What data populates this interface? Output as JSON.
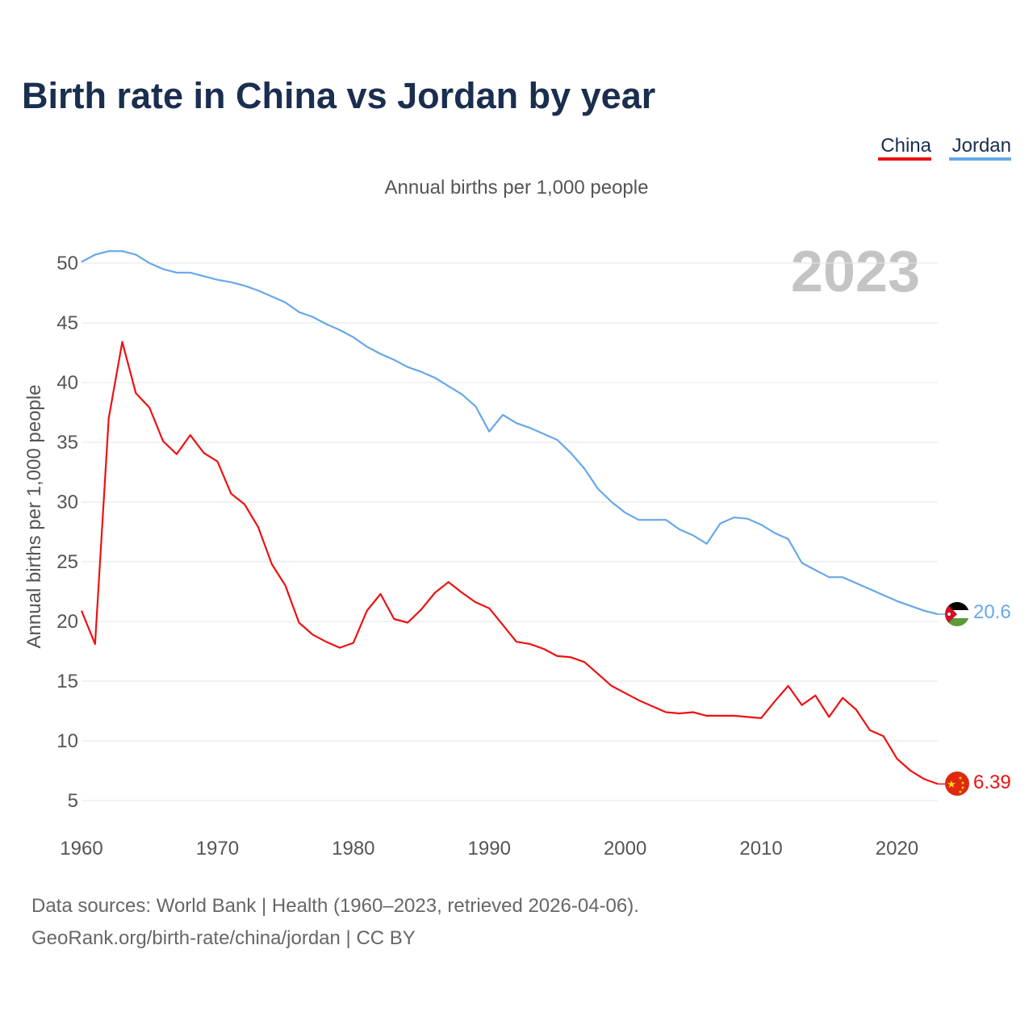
{
  "title": "Birth rate in China vs Jordan by year",
  "subtitle": "Annual births per 1,000 people",
  "year_watermark": "2023",
  "legend": [
    {
      "label": "China",
      "color": "#ee1111"
    },
    {
      "label": "Jordan",
      "color": "#66a8e8"
    }
  ],
  "footer": {
    "line1": "Data sources: World Bank | Health (1960–2023, retrieved 2026-04-06).",
    "line2": "GeoRank.org/birth-rate/china/jordan | CC BY"
  },
  "end_labels": {
    "china": "6.39",
    "jordan": "20.6"
  },
  "flags": {
    "china": "china-flag-icon",
    "jordan": "jordan-flag-icon"
  },
  "chart_data": {
    "type": "line",
    "title": "Birth rate in China vs Jordan by year",
    "xlabel": "",
    "ylabel": "Annual births per 1,000 people",
    "xlim": [
      1960,
      2023
    ],
    "ylim": [
      3.5,
      53
    ],
    "x_ticks": [
      1960,
      1970,
      1980,
      1990,
      2000,
      2010,
      2020
    ],
    "y_ticks": [
      5,
      10,
      15,
      20,
      25,
      30,
      35,
      40,
      45,
      50
    ],
    "x": [
      1960,
      1961,
      1962,
      1963,
      1964,
      1965,
      1966,
      1967,
      1968,
      1969,
      1970,
      1971,
      1972,
      1973,
      1974,
      1975,
      1976,
      1977,
      1978,
      1979,
      1980,
      1981,
      1982,
      1983,
      1984,
      1985,
      1986,
      1987,
      1988,
      1989,
      1990,
      1991,
      1992,
      1993,
      1994,
      1995,
      1996,
      1997,
      1998,
      1999,
      2000,
      2001,
      2002,
      2003,
      2004,
      2005,
      2006,
      2007,
      2008,
      2009,
      2010,
      2011,
      2012,
      2013,
      2014,
      2015,
      2016,
      2017,
      2018,
      2019,
      2020,
      2021,
      2022,
      2023
    ],
    "series": [
      {
        "name": "China",
        "color": "#ee1111",
        "values": [
          20.9,
          18.1,
          37.0,
          43.4,
          39.1,
          37.9,
          35.1,
          34.0,
          35.6,
          34.1,
          33.4,
          30.7,
          29.8,
          27.9,
          24.8,
          23.0,
          19.9,
          18.9,
          18.3,
          17.8,
          18.2,
          20.9,
          22.3,
          20.2,
          19.9,
          21.0,
          22.4,
          23.3,
          22.4,
          21.6,
          21.1,
          19.7,
          18.3,
          18.1,
          17.7,
          17.1,
          17.0,
          16.6,
          15.6,
          14.6,
          14.0,
          13.4,
          12.9,
          12.4,
          12.3,
          12.4,
          12.1,
          12.1,
          12.1,
          12.0,
          11.9,
          13.3,
          14.6,
          13.0,
          13.8,
          12.0,
          13.6,
          12.6,
          10.9,
          10.4,
          8.5,
          7.5,
          6.8,
          6.39
        ]
      },
      {
        "name": "Jordan",
        "color": "#66a8e8",
        "values": [
          50.1,
          50.7,
          51.0,
          51.0,
          50.7,
          50.0,
          49.5,
          49.2,
          49.2,
          48.9,
          48.6,
          48.4,
          48.1,
          47.7,
          47.2,
          46.7,
          45.9,
          45.5,
          44.9,
          44.4,
          43.8,
          43.0,
          42.4,
          41.9,
          41.3,
          40.9,
          40.4,
          39.7,
          39.0,
          38.0,
          35.9,
          37.3,
          36.6,
          36.2,
          35.7,
          35.2,
          34.1,
          32.8,
          31.1,
          30.0,
          29.1,
          28.5,
          28.5,
          28.5,
          27.7,
          27.2,
          26.5,
          28.2,
          28.7,
          28.6,
          28.1,
          27.4,
          26.9,
          24.9,
          24.3,
          23.7,
          23.7,
          23.2,
          22.7,
          22.2,
          21.7,
          21.3,
          20.9,
          20.6
        ]
      }
    ]
  }
}
